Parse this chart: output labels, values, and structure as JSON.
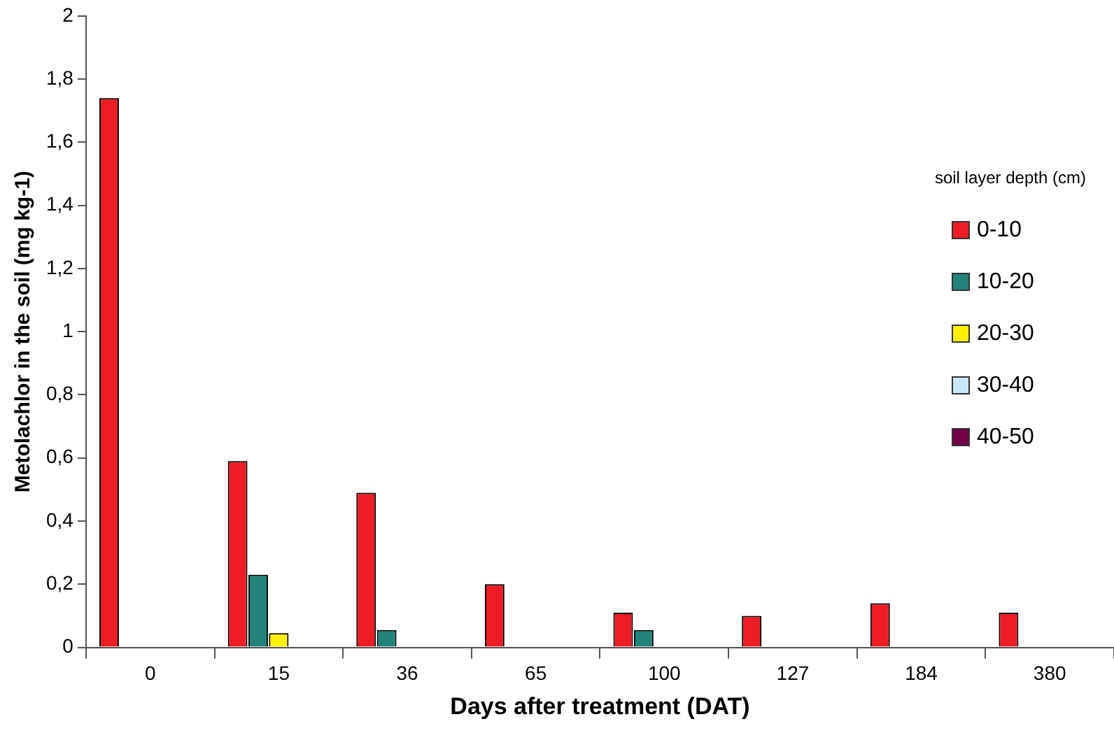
{
  "chart_data": {
    "type": "bar",
    "xlabel": "Days after treatment (DAT)",
    "ylabel": "Metolachlor in the soil (mg kg-1)",
    "legend_title": "soil layer depth (cm)",
    "legend": "right",
    "grid": false,
    "categories": [
      "0",
      "15",
      "36",
      "65",
      "100",
      "127",
      "184",
      "380"
    ],
    "ylim": [
      0,
      2
    ],
    "yticks": [
      0,
      {
        "value": 0.2,
        "label": "0,2"
      },
      {
        "value": 0.4,
        "label": "0,4"
      },
      {
        "value": 0.6,
        "label": "0,6"
      },
      {
        "value": 0.8,
        "label": "0,8"
      },
      1,
      {
        "value": 1.2,
        "label": "1,2"
      },
      {
        "value": 1.4,
        "label": "1,4"
      },
      {
        "value": 1.6,
        "label": "1,6"
      },
      {
        "value": 1.8,
        "label": "1,8"
      },
      2
    ],
    "series": [
      {
        "name": "0-10",
        "color": "#ee1c24",
        "values": [
          1.74,
          0.59,
          0.49,
          0.2,
          0.11,
          0.1,
          0.14,
          0.11
        ]
      },
      {
        "name": "10-20",
        "color": "#22837a",
        "values": [
          null,
          0.23,
          0.055,
          null,
          0.055,
          null,
          null,
          null
        ]
      },
      {
        "name": "20-30",
        "color": "#fff200",
        "values": [
          null,
          0.045,
          null,
          null,
          null,
          null,
          null,
          null
        ]
      },
      {
        "name": "30-40",
        "color": "#c8e8f8",
        "values": [
          null,
          null,
          null,
          null,
          null,
          null,
          null,
          null
        ]
      },
      {
        "name": "40-50",
        "color": "#720046",
        "values": [
          null,
          null,
          null,
          null,
          null,
          null,
          null,
          null
        ]
      }
    ]
  }
}
